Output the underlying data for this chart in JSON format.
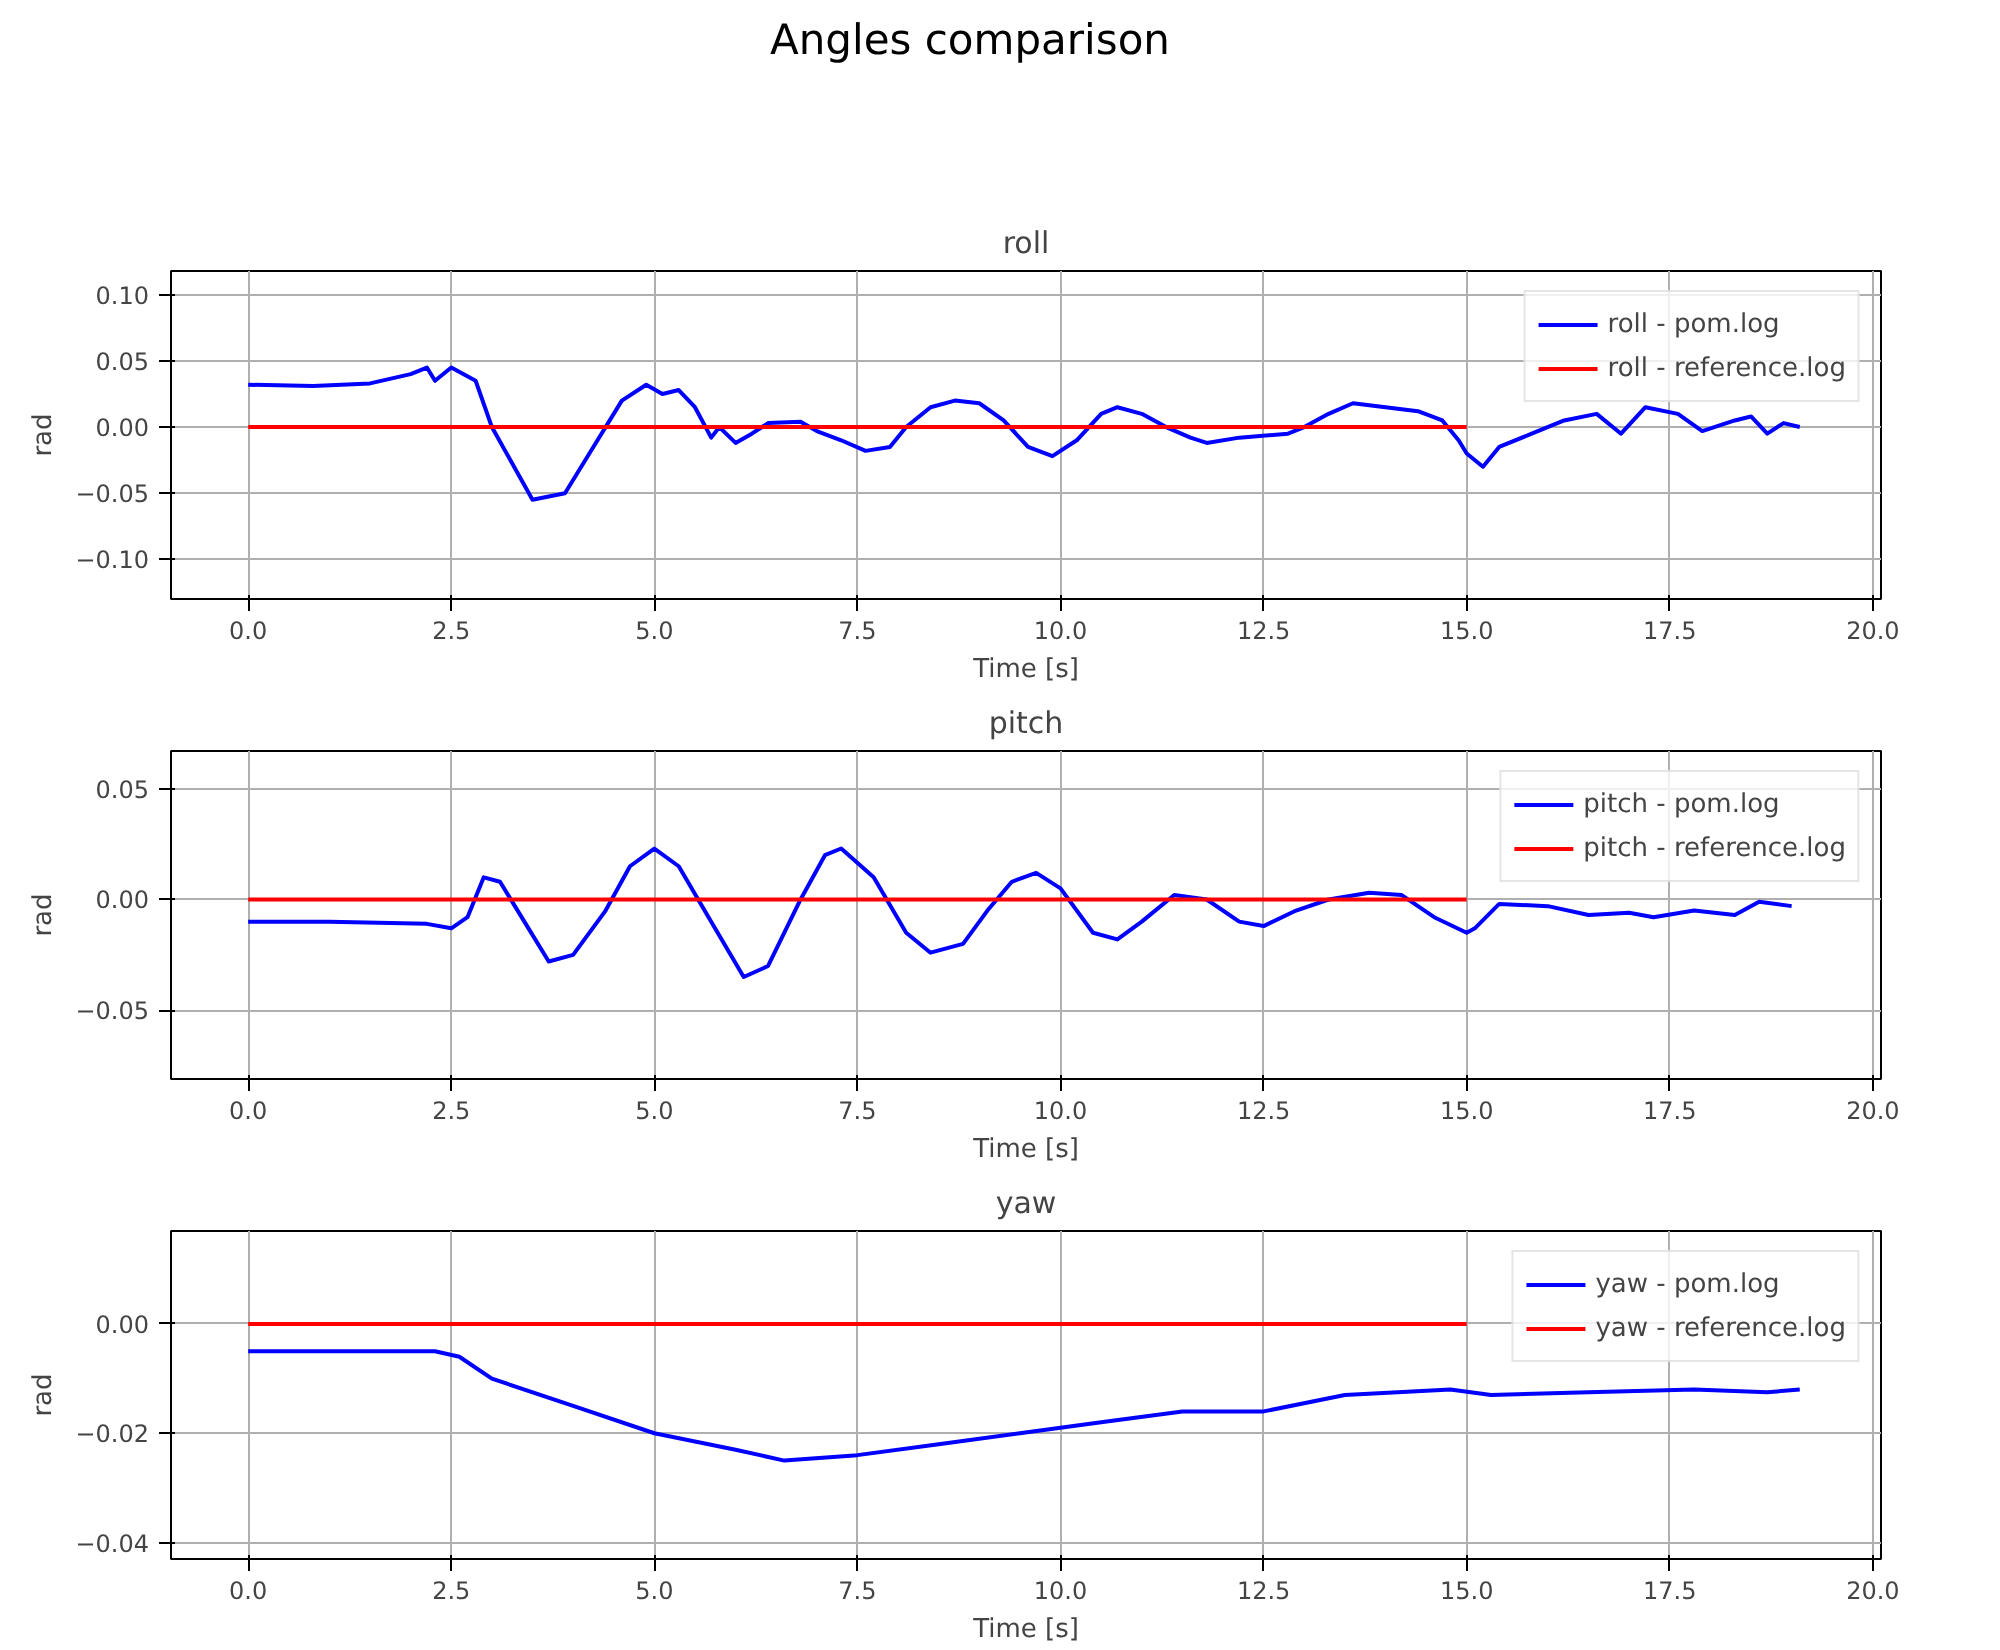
{
  "chart_data": [
    {
      "type": "other",
      "title": "Angles comparison"
    },
    {
      "type": "line",
      "title": "roll",
      "xlabel": "Time [s]",
      "ylabel": "rad",
      "grid": true,
      "legend": "top right",
      "line_style": "solid",
      "marker": "none",
      "xlim": [
        -0.95,
        20.1
      ],
      "xticks": [
        {
          "value": 0,
          "label": "0.0"
        },
        {
          "value": 2.5,
          "label": "2.5"
        },
        {
          "value": 5,
          "label": "5.0"
        },
        {
          "value": 7.5,
          "label": "7.5"
        },
        {
          "value": 10,
          "label": "10.0"
        },
        {
          "value": 12.5,
          "label": "12.5"
        },
        {
          "value": 15,
          "label": "15.0"
        },
        {
          "value": 17.5,
          "label": "17.5"
        },
        {
          "value": 20,
          "label": "20.0"
        }
      ],
      "ylim": [
        -0.13,
        0.118
      ],
      "yticks": [
        {
          "value": -0.1,
          "label": "−0.10"
        },
        {
          "value": -0.05,
          "label": "−0.05"
        },
        {
          "value": 0,
          "label": "0.00"
        },
        {
          "value": 0.05,
          "label": "0.05"
        },
        {
          "value": 0.1,
          "label": "0.10"
        }
      ],
      "series": [
        {
          "name": "roll - pom.log",
          "color": "#0000ff",
          "x": [
            0,
            0.8,
            1.5,
            2.0,
            2.2,
            2.3,
            2.5,
            2.8,
            3.0,
            3.5,
            3.9,
            4.2,
            4.6,
            4.9,
            5.1,
            5.3,
            5.5,
            5.7,
            5.8,
            6.0,
            6.2,
            6.4,
            6.8,
            7.0,
            7.3,
            7.6,
            7.9,
            8.1,
            8.4,
            8.7,
            9.0,
            9.3,
            9.6,
            9.9,
            10.2,
            10.5,
            10.7,
            11.0,
            11.3,
            11.6,
            11.8,
            12.2,
            12.8,
            13.0,
            13.3,
            13.6,
            14.0,
            14.4,
            14.7,
            14.9,
            15.0,
            15.2,
            15.4,
            15.8,
            16.2,
            16.6,
            16.9,
            17.2,
            17.6,
            17.9,
            18.3,
            18.5,
            18.7,
            18.9,
            19.1
          ],
          "values": [
            0.032,
            0.031,
            0.033,
            0.04,
            0.045,
            0.035,
            0.045,
            0.035,
            0.0,
            -0.055,
            -0.05,
            -0.02,
            0.02,
            0.032,
            0.025,
            0.028,
            0.015,
            -0.008,
            0.0,
            -0.012,
            -0.005,
            0.003,
            0.004,
            -0.003,
            -0.01,
            -0.018,
            -0.015,
            0.0,
            0.015,
            0.02,
            0.018,
            0.005,
            -0.015,
            -0.022,
            -0.01,
            0.01,
            0.015,
            0.01,
            0.0,
            -0.008,
            -0.012,
            -0.008,
            -0.005,
            0.0,
            0.01,
            0.018,
            0.015,
            0.012,
            0.005,
            -0.01,
            -0.02,
            -0.03,
            -0.015,
            -0.005,
            0.005,
            0.01,
            -0.005,
            0.015,
            0.01,
            -0.003,
            0.005,
            0.008,
            -0.005,
            0.003,
            0.0
          ]
        },
        {
          "name": "roll - reference.log",
          "color": "#ff0000",
          "x": [
            0,
            15
          ],
          "values": [
            0,
            0
          ]
        }
      ]
    },
    {
      "type": "line",
      "title": "pitch",
      "xlabel": "Time [s]",
      "ylabel": "rad",
      "grid": true,
      "legend": "top right",
      "line_style": "solid",
      "marker": "none",
      "xlim": [
        -0.95,
        20.1
      ],
      "xticks": [
        {
          "value": 0,
          "label": "0.0"
        },
        {
          "value": 2.5,
          "label": "2.5"
        },
        {
          "value": 5,
          "label": "5.0"
        },
        {
          "value": 7.5,
          "label": "7.5"
        },
        {
          "value": 10,
          "label": "10.0"
        },
        {
          "value": 12.5,
          "label": "12.5"
        },
        {
          "value": 15,
          "label": "15.0"
        },
        {
          "value": 17.5,
          "label": "17.5"
        },
        {
          "value": 20,
          "label": "20.0"
        }
      ],
      "ylim": [
        -0.081,
        0.067
      ],
      "yticks": [
        {
          "value": -0.05,
          "label": "−0.05"
        },
        {
          "value": 0,
          "label": "0.00"
        },
        {
          "value": 0.05,
          "label": "0.05"
        }
      ],
      "series": [
        {
          "name": "pitch - pom.log",
          "color": "#0000ff",
          "x": [
            0,
            1.0,
            2.2,
            2.5,
            2.7,
            2.9,
            3.1,
            3.4,
            3.7,
            4.0,
            4.4,
            4.7,
            5.0,
            5.3,
            5.7,
            6.1,
            6.4,
            6.8,
            7.1,
            7.3,
            7.7,
            8.1,
            8.4,
            8.8,
            9.1,
            9.4,
            9.7,
            10.0,
            10.4,
            10.7,
            11.0,
            11.4,
            11.8,
            12.2,
            12.5,
            12.9,
            13.3,
            13.8,
            14.2,
            14.6,
            15.0,
            15.1,
            15.4,
            16.0,
            16.5,
            17.0,
            17.3,
            17.8,
            18.3,
            18.6,
            19.0
          ],
          "values": [
            -0.01,
            -0.01,
            -0.011,
            -0.013,
            -0.008,
            0.01,
            0.008,
            -0.01,
            -0.028,
            -0.025,
            -0.005,
            0.015,
            0.023,
            0.015,
            -0.01,
            -0.035,
            -0.03,
            0.0,
            0.02,
            0.023,
            0.01,
            -0.015,
            -0.024,
            -0.02,
            -0.005,
            0.008,
            0.012,
            0.005,
            -0.015,
            -0.018,
            -0.01,
            0.002,
            0.0,
            -0.01,
            -0.012,
            -0.005,
            0.0,
            0.003,
            0.002,
            -0.008,
            -0.015,
            -0.013,
            -0.002,
            -0.003,
            -0.007,
            -0.006,
            -0.008,
            -0.005,
            -0.007,
            -0.001,
            -0.003
          ]
        },
        {
          "name": "pitch - reference.log",
          "color": "#ff0000",
          "x": [
            0,
            15
          ],
          "values": [
            0,
            0
          ]
        }
      ]
    },
    {
      "type": "line",
      "title": "yaw",
      "xlabel": "Time [s]",
      "ylabel": "rad",
      "grid": true,
      "legend": "top right",
      "line_style": "solid",
      "marker": "none",
      "xlim": [
        -0.95,
        20.1
      ],
      "xticks": [
        {
          "value": 0,
          "label": "0.0"
        },
        {
          "value": 2.5,
          "label": "2.5"
        },
        {
          "value": 5,
          "label": "5.0"
        },
        {
          "value": 7.5,
          "label": "7.5"
        },
        {
          "value": 10,
          "label": "10.0"
        },
        {
          "value": 12.5,
          "label": "12.5"
        },
        {
          "value": 15,
          "label": "15.0"
        },
        {
          "value": 17.5,
          "label": "17.5"
        },
        {
          "value": 20,
          "label": "20.0"
        }
      ],
      "ylim": [
        -0.043,
        0.017
      ],
      "yticks": [
        {
          "value": -0.04,
          "label": "−0.04"
        },
        {
          "value": -0.02,
          "label": "−0.02"
        },
        {
          "value": 0,
          "label": "0.00"
        }
      ],
      "series": [
        {
          "name": "yaw - pom.log",
          "color": "#0000ff",
          "x": [
            0,
            1.0,
            2.3,
            2.6,
            3.0,
            4.0,
            5.0,
            6.0,
            6.6,
            7.5,
            8.5,
            9.5,
            10.5,
            11.5,
            12.5,
            13.5,
            14.8,
            15.3,
            16.5,
            17.8,
            18.7,
            19.1
          ],
          "values": [
            -0.005,
            -0.005,
            -0.005,
            -0.006,
            -0.01,
            -0.015,
            -0.02,
            -0.023,
            -0.025,
            -0.024,
            -0.022,
            -0.02,
            -0.018,
            -0.016,
            -0.016,
            -0.013,
            -0.012,
            -0.013,
            -0.0125,
            -0.012,
            -0.0125,
            -0.012
          ]
        },
        {
          "name": "yaw - reference.log",
          "color": "#ff0000",
          "x": [
            0,
            15
          ],
          "values": [
            0,
            0
          ]
        }
      ]
    }
  ]
}
